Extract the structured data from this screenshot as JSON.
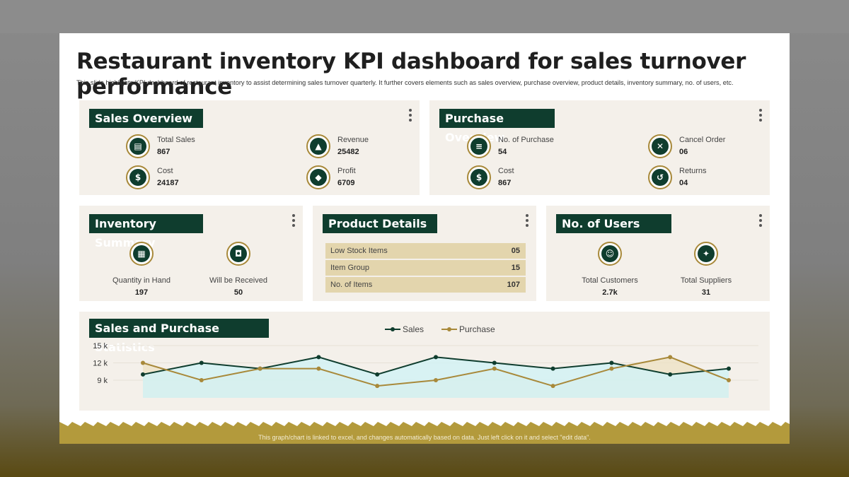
{
  "title": "Restaurant inventory KPI dashboard for sales turnover performance",
  "subtitle": "This slide highlights KPI dashboard of restaurant inventory to  assist determining sales turnover quarterly. It further covers elements such as sales overview, purchase overview, product details, inventory summary, no. of users, etc.",
  "sales_overview": {
    "title": "Sales Overview",
    "items": [
      {
        "label": "Total Sales",
        "value": "867",
        "icon": "cash-register-icon"
      },
      {
        "label": "Revenue",
        "value": "25482",
        "icon": "growth-chart-icon"
      },
      {
        "label": "Cost",
        "value": "24187",
        "icon": "dollar-icon"
      },
      {
        "label": "Profit",
        "value": "6709",
        "icon": "money-bag-icon"
      }
    ]
  },
  "purchase_overview": {
    "title": "Purchase Overview",
    "items": [
      {
        "label": "No. of Purchase",
        "value": "54",
        "icon": "invoice-icon"
      },
      {
        "label": "Cancel Order",
        "value": "06",
        "icon": "cart-cancel-icon"
      },
      {
        "label": "Cost",
        "value": "867",
        "icon": "dollar-icon"
      },
      {
        "label": "Returns",
        "value": "04",
        "icon": "return-box-icon"
      }
    ]
  },
  "inventory_summary": {
    "title": "Inventory Summary",
    "items": [
      {
        "label": "Quantity in Hand",
        "value": "197",
        "icon": "boxes-icon"
      },
      {
        "label": "Will be Received",
        "value": "50",
        "icon": "delivery-box-icon"
      }
    ]
  },
  "product_details": {
    "title": "Product Details",
    "rows": [
      {
        "label": "Low Stock Items",
        "value": "05"
      },
      {
        "label": "Item Group",
        "value": "15"
      },
      {
        "label": "No. of Items",
        "value": "107"
      }
    ]
  },
  "users": {
    "title": "No. of Users",
    "items": [
      {
        "label": "Total Customers",
        "value": "2.7k",
        "icon": "customers-icon"
      },
      {
        "label": "Total Suppliers",
        "value": "31",
        "icon": "suppliers-icon"
      }
    ]
  },
  "statistics": {
    "title": "Sales and Purchase Statistics"
  },
  "colors": {
    "dark_green": "#0f3d2e",
    "gold": "#a8893a",
    "panel": "#f4f0ea",
    "sales_fill": "#d2f2f4",
    "purchase_fill": "#eee1c3"
  },
  "chart_data": {
    "type": "line",
    "title": "Sales and Purchase Statistics",
    "y_ticks": [
      "15 k",
      "12 k",
      "9 k"
    ],
    "ylim": [
      9,
      15
    ],
    "series": [
      {
        "name": "Sales",
        "color": "#0f3d2e",
        "values": [
          10,
          12,
          11,
          13,
          10,
          13,
          12,
          11,
          12,
          10,
          11
        ]
      },
      {
        "name": "Purchase",
        "color": "#a8893a",
        "values": [
          12,
          9,
          11,
          11,
          8,
          9,
          11,
          8,
          11,
          13,
          9
        ]
      }
    ],
    "legend": "top-center",
    "grid": true
  },
  "footer": "This graph/chart is linked to excel,  and changes automatically based on data. Just left click on it and select \"edit data\"."
}
